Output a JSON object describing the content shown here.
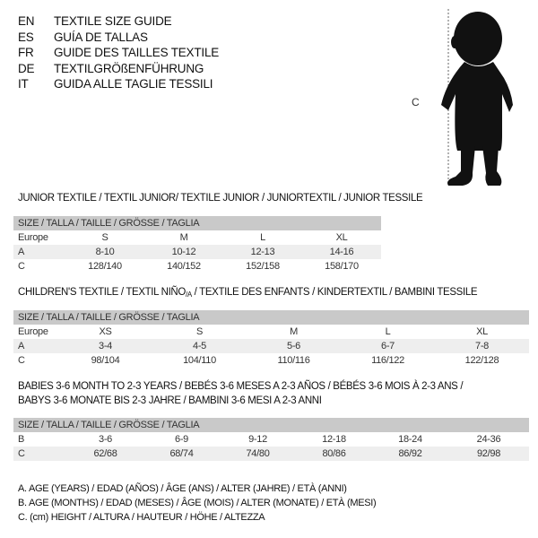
{
  "languages": [
    {
      "code": "EN",
      "title": "TEXTILE SIZE GUIDE"
    },
    {
      "code": "ES",
      "title": "GUÍA DE TALLAS"
    },
    {
      "code": "FR",
      "title": "GUIDE DES TAILLES TEXTILE"
    },
    {
      "code": "DE",
      "title": "TEXTILGRÖßENFÜHRUNG"
    },
    {
      "code": "IT",
      "title": "GUIDA ALLE TAGLIE TESSILI"
    }
  ],
  "figure": {
    "measure_label": "C",
    "icon": "child-silhouette"
  },
  "size_header": "SIZE / TALLA / TAILLE / GRÖSSE / TAGLIA",
  "junior": {
    "title": "JUNIOR TEXTILE / TEXTIL JUNIOR/ TEXTILE JUNIOR / JUNIORTEXTIL / JUNIOR TESSILE",
    "rows": [
      {
        "label": "Europe",
        "values": [
          "S",
          "M",
          "L",
          "XL"
        ]
      },
      {
        "label": "A",
        "values": [
          "8-10",
          "10-12",
          "12-13",
          "14-16"
        ]
      },
      {
        "label": "C",
        "values": [
          "128/140",
          "140/152",
          "152/158",
          "158/170"
        ]
      }
    ]
  },
  "children": {
    "title_a": "CHILDREN'S TEXTILE / TEXTIL NIÑO",
    "title_sub": "/A",
    "title_b": " / TEXTILE DES ENFANTS / KINDERTEXTIL / BAMBINI TESSILE",
    "rows": [
      {
        "label": "Europe",
        "values": [
          "XS",
          "S",
          "M",
          "L",
          "XL"
        ]
      },
      {
        "label": "A",
        "values": [
          "3-4",
          "4-5",
          "5-6",
          "6-7",
          "7-8"
        ]
      },
      {
        "label": "C",
        "values": [
          "98/104",
          "104/110",
          "110/116",
          "116/122",
          "122/128"
        ]
      }
    ]
  },
  "babies": {
    "title_line1": "BABIES 3-6 MONTH TO 2-3 YEARS / BEBÉS 3-6 MESES A 2-3 AÑOS / BÉBÉS 3-6 MOIS À 2-3 ANS /",
    "title_line2": "BABYS 3-6 MONATE BIS 2-3 JAHRE / BAMBINI 3-6 MESI A 2-3 ANNI",
    "rows": [
      {
        "label": "B",
        "values": [
          "3-6",
          "6-9",
          "9-12",
          "12-18",
          "18-24",
          "24-36"
        ]
      },
      {
        "label": "C",
        "values": [
          "62/68",
          "68/74",
          "74/80",
          "80/86",
          "86/92",
          "92/98"
        ]
      }
    ]
  },
  "legend": [
    "A. AGE (YEARS) / EDAD (AÑOS) / ÂGE (ANS) / ALTER (JAHRE) / ETÀ (ANNI)",
    "B. AGE (MONTHS) / EDAD (MESES) / ÂGE (MOIS) / ALTER (MONATE) / ETÀ (MESI)",
    "C. (cm) HEIGHT / ALTURA / HAUTEUR / HÖHE / ALTEZZA"
  ]
}
